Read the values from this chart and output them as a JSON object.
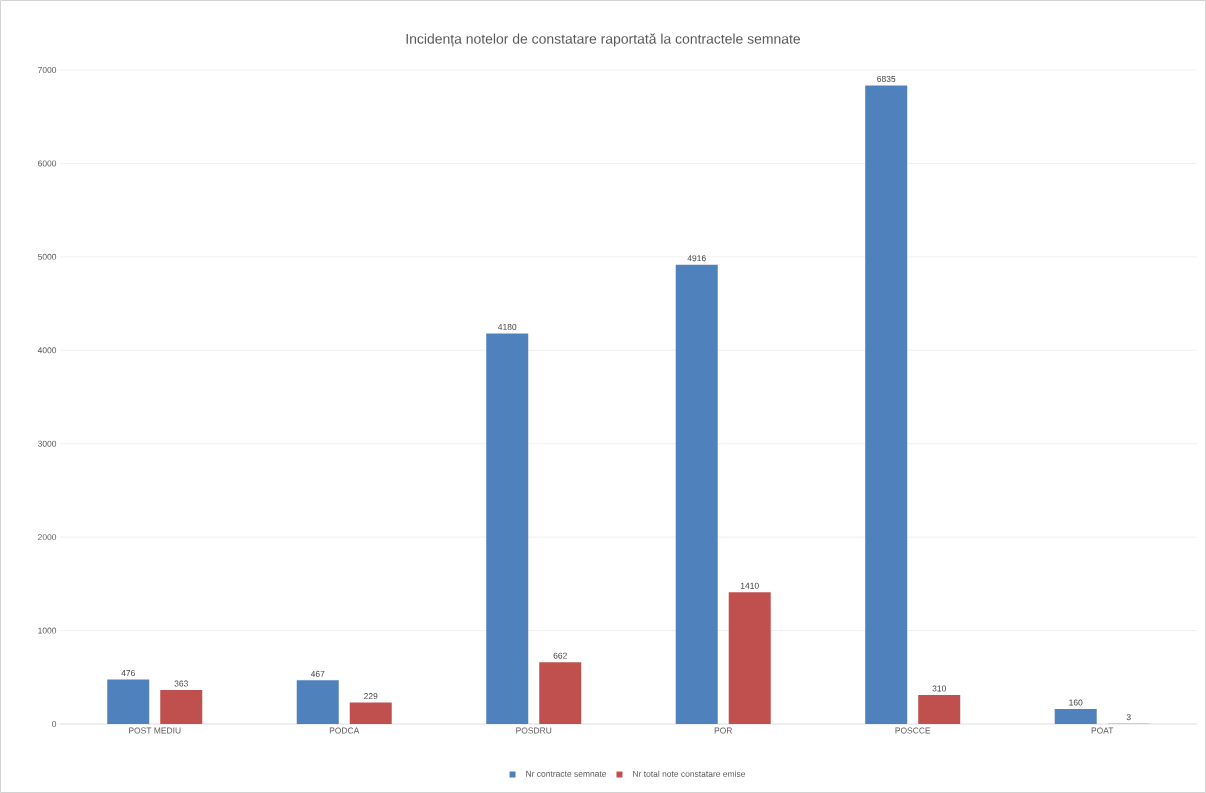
{
  "chart_data": {
    "type": "bar",
    "title": "Incidența notelor de constatare raportată la contractele semnate",
    "categories": [
      "POST MEDIU",
      "PODCA",
      "POSDRU",
      "POR",
      "POSCCE",
      "POAT"
    ],
    "series": [
      {
        "name": "Nr contracte semnate",
        "color": "#4f81bd",
        "values": [
          476,
          467,
          4180,
          4916,
          6835,
          160
        ]
      },
      {
        "name": "Nr total note constatare emise",
        "color": "#c0504d",
        "values": [
          363,
          229,
          662,
          1410,
          310,
          3
        ]
      }
    ],
    "ylim": [
      0,
      7000
    ],
    "yticks": [
      0,
      1000,
      2000,
      3000,
      4000,
      5000,
      6000,
      7000
    ],
    "grid": "y",
    "legend": "bottom",
    "data_labels": true
  }
}
